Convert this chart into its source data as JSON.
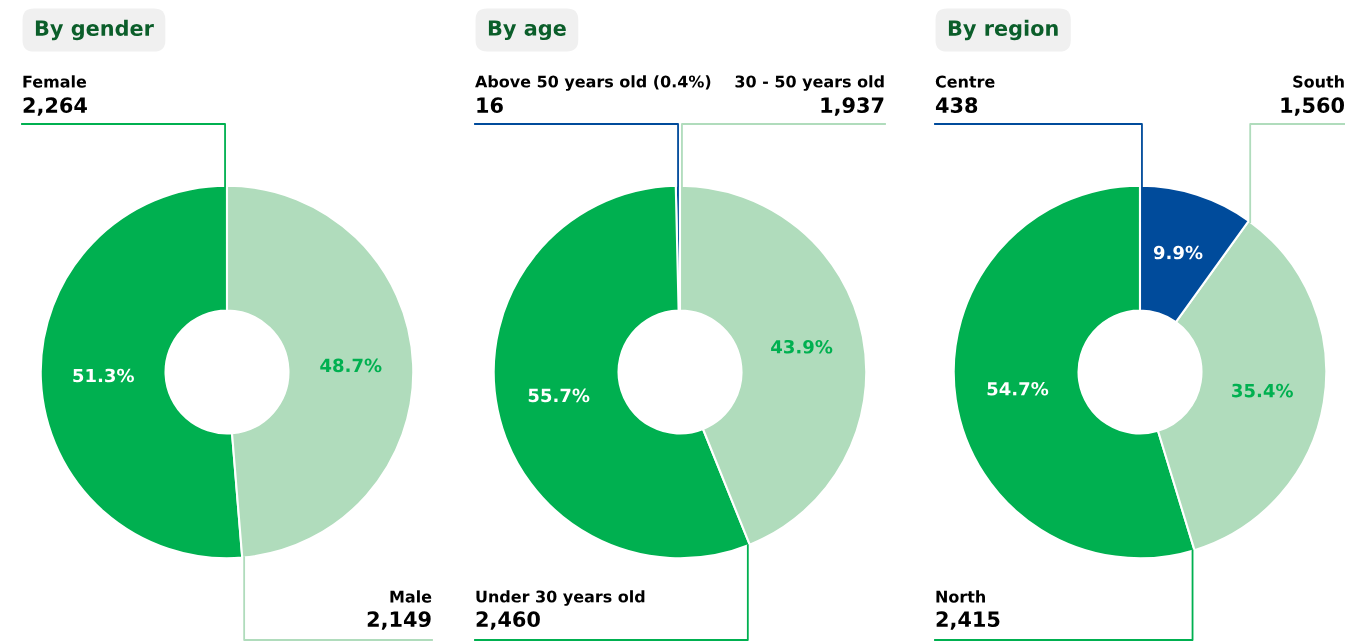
{
  "chart_data": [
    {
      "type": "donut",
      "title": "By gender",
      "categories": [
        "Female",
        "Male"
      ],
      "values": [
        2264,
        2149
      ],
      "colors": [
        "#00b050",
        "#b0dcbc"
      ],
      "value_labels": [
        "2,264",
        "2,149"
      ],
      "annotations": [
        {
          "text": "51.3%",
          "x": "Female"
        },
        {
          "text": "48.7%",
          "x": "Male"
        }
      ]
    },
    {
      "type": "donut",
      "title": "By age",
      "categories": [
        "Above 50 years old (0.4%)",
        "Under 30 years old",
        "30 - 50 years old"
      ],
      "values": [
        16,
        2460,
        1937
      ],
      "colors": [
        "#004b9b",
        "#00b050",
        "#b0dcbc"
      ],
      "value_labels": [
        "16",
        "2,460",
        "1,937"
      ],
      "annotations": [
        {
          "text": "55.7%",
          "x": "Under 30 years old"
        },
        {
          "text": "43.9%",
          "x": "30 - 50 years old"
        }
      ]
    },
    {
      "type": "donut",
      "title": "By region",
      "categories": [
        "North",
        "South",
        "Centre"
      ],
      "values": [
        2415,
        1560,
        438
      ],
      "colors": [
        "#00b050",
        "#b0dcbc",
        "#004b9b"
      ],
      "value_labels": [
        "2,415",
        "1,560",
        "438"
      ],
      "annotations": [
        {
          "text": "54.7%",
          "x": "North"
        },
        {
          "text": "35.4%",
          "x": "South"
        },
        {
          "text": "9.9%",
          "x": "Centre"
        }
      ]
    }
  ]
}
